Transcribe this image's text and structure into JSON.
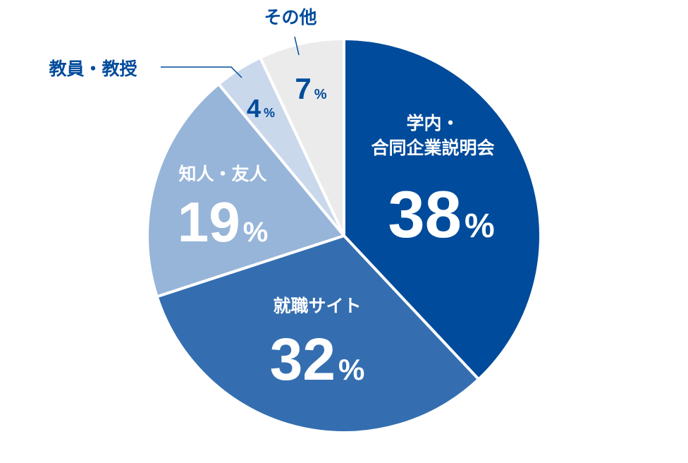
{
  "chart_data": {
    "type": "pie",
    "categories": [
      "学内・合同企業説明会",
      "就職サイト",
      "知人・友人",
      "教員・教授",
      "その他"
    ],
    "values": [
      38,
      32,
      19,
      4,
      7
    ],
    "unit": "%",
    "slices": [
      {
        "name_lines": [
          "学内・",
          "合同企業説明会"
        ],
        "value": 38,
        "color": "#004b9b"
      },
      {
        "name_lines": [
          "就職サイト"
        ],
        "value": 32,
        "color": "#346eb0"
      },
      {
        "name_lines": [
          "知人・友人"
        ],
        "value": 19,
        "color": "#97b5d9"
      },
      {
        "name_lines": [
          "教員・教授"
        ],
        "value": 4,
        "color": "#cad8ec"
      },
      {
        "name_lines": [
          "その他"
        ],
        "value": 7,
        "color": "#ebebeb"
      }
    ],
    "colors": {
      "label_on_dark": "#ffffff",
      "label_on_light": "#004b9b",
      "separator": "#ffffff",
      "leader_line": "#004b9b"
    }
  }
}
